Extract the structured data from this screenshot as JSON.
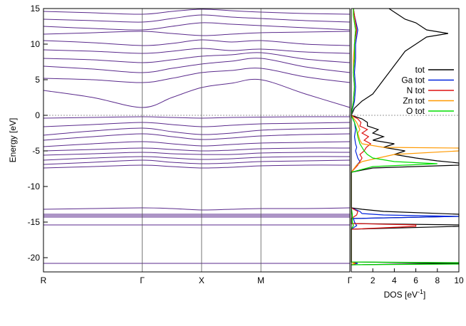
{
  "chart_data": [
    {
      "type": "line",
      "ylabel": "Energy [eV]",
      "ylim": [
        -22,
        15
      ],
      "yticks": [
        15,
        10,
        5,
        0,
        -5,
        -10,
        -15,
        -20
      ],
      "kpoints": [
        "R",
        "Γ",
        "X",
        "M",
        "Γ"
      ],
      "kpoint_positions": [
        0,
        1,
        1.6,
        2.2,
        3.1
      ],
      "band_color": "#5a2a8c",
      "fermi_level": 0,
      "grid": false,
      "bands": [
        {
          "name": "",
          "x": [
            0,
            0.5,
            1,
            1.3,
            1.6,
            1.9,
            2.2,
            2.65,
            3.1
          ],
          "y": [
            -20.8,
            -20.8,
            -20.8,
            -20.8,
            -20.8,
            -20.8,
            -20.8,
            -20.8,
            -20.8
          ]
        },
        {
          "name": "",
          "x": [
            0,
            0.5,
            1,
            1.3,
            1.6,
            1.9,
            2.2,
            2.65,
            3.1
          ],
          "y": [
            -15.4,
            -15.4,
            -15.4,
            -15.4,
            -15.4,
            -15.4,
            -15.4,
            -15.4,
            -15.4
          ]
        },
        {
          "name": "",
          "x": [
            0,
            0.5,
            1,
            1.3,
            1.6,
            1.9,
            2.2,
            2.65,
            3.1
          ],
          "y": [
            -14.3,
            -14.3,
            -14.3,
            -14.3,
            -14.3,
            -14.3,
            -14.3,
            -14.3,
            -14.3
          ]
        },
        {
          "name": "",
          "x": [
            0,
            0.5,
            1,
            1.3,
            1.6,
            1.9,
            2.2,
            2.65,
            3.1
          ],
          "y": [
            -14.1,
            -14.1,
            -14.1,
            -14.1,
            -14.1,
            -14.1,
            -14.1,
            -14.1,
            -14.1
          ]
        },
        {
          "name": "",
          "x": [
            0,
            0.5,
            1,
            1.3,
            1.6,
            1.9,
            2.2,
            2.65,
            3.1
          ],
          "y": [
            -13.9,
            -13.9,
            -13.9,
            -13.9,
            -13.9,
            -13.9,
            -13.9,
            -13.9,
            -13.9
          ]
        },
        {
          "name": "",
          "x": [
            0,
            0.5,
            1,
            1.3,
            1.6,
            1.9,
            2.2,
            2.65,
            3.1
          ],
          "y": [
            -13.2,
            -13.1,
            -13.0,
            -13.1,
            -13.3,
            -13.2,
            -13.1,
            -13.1,
            -13.0
          ]
        },
        {
          "name": "",
          "x": [
            0,
            0.5,
            1,
            1.3,
            1.6,
            1.9,
            2.2,
            2.65,
            3.1
          ],
          "y": [
            -7.4,
            -7.2,
            -7.0,
            -7.2,
            -7.4,
            -7.3,
            -7.1,
            -7.0,
            -7.0
          ]
        },
        {
          "name": "",
          "x": [
            0,
            0.5,
            1,
            1.3,
            1.6,
            1.9,
            2.2,
            2.65,
            3.1
          ],
          "y": [
            -6.9,
            -6.6,
            -6.3,
            -6.6,
            -6.8,
            -6.7,
            -6.5,
            -6.4,
            -6.3
          ]
        },
        {
          "name": "",
          "x": [
            0,
            0.5,
            1,
            1.3,
            1.6,
            1.9,
            2.2,
            2.65,
            3.1
          ],
          "y": [
            -6.3,
            -6.0,
            -5.8,
            -6.0,
            -6.2,
            -6.1,
            -5.9,
            -5.8,
            -5.8
          ]
        },
        {
          "name": "",
          "x": [
            0,
            0.5,
            1,
            1.3,
            1.6,
            1.9,
            2.2,
            2.65,
            3.1
          ],
          "y": [
            -5.6,
            -5.4,
            -5.2,
            -5.4,
            -5.5,
            -5.5,
            -5.3,
            -5.2,
            -5.2
          ]
        },
        {
          "name": "",
          "x": [
            0,
            0.5,
            1,
            1.3,
            1.6,
            1.9,
            2.2,
            2.65,
            3.1
          ],
          "y": [
            -5.0,
            -4.8,
            -4.6,
            -4.8,
            -5.0,
            -4.9,
            -4.7,
            -4.6,
            -4.6
          ]
        },
        {
          "name": "",
          "x": [
            0,
            0.5,
            1,
            1.3,
            1.6,
            1.9,
            2.2,
            2.65,
            3.1
          ],
          "y": [
            -4.4,
            -4.0,
            -3.7,
            -4.0,
            -4.3,
            -4.1,
            -3.9,
            -3.8,
            -3.7
          ]
        },
        {
          "name": "",
          "x": [
            0,
            0.5,
            1,
            1.3,
            1.6,
            1.9,
            2.2,
            2.65,
            3.1
          ],
          "y": [
            -3.5,
            -3.0,
            -2.6,
            -3.0,
            -3.4,
            -3.2,
            -2.9,
            -2.7,
            -2.6
          ]
        },
        {
          "name": "",
          "x": [
            0,
            0.5,
            1,
            1.3,
            1.6,
            1.9,
            2.2,
            2.65,
            3.1
          ],
          "y": [
            -2.8,
            -2.2,
            -1.8,
            -2.3,
            -2.7,
            -2.5,
            -2.1,
            -1.9,
            -1.8
          ]
        },
        {
          "name": "",
          "x": [
            0,
            0.5,
            1,
            1.3,
            1.6,
            1.9,
            2.2,
            2.65,
            3.1
          ],
          "y": [
            -1.6,
            -1.3,
            -1.0,
            -1.3,
            -1.6,
            -1.4,
            -1.2,
            -1.1,
            -1.0
          ]
        },
        {
          "name": "",
          "x": [
            0,
            0.5,
            1,
            1.3,
            1.6,
            1.9,
            2.2,
            2.65,
            3.1
          ],
          "y": [
            -0.4,
            -0.3,
            -0.2,
            -0.3,
            -0.4,
            -0.3,
            -0.25,
            -0.2,
            -0.2
          ]
        },
        {
          "name": "",
          "x": [
            0,
            0.5,
            1,
            1.3,
            1.6,
            1.9,
            2.2,
            2.65,
            3.1
          ],
          "y": [
            3.5,
            2.5,
            1.1,
            2.5,
            3.9,
            4.5,
            5.0,
            3.0,
            1.1
          ]
        },
        {
          "name": "",
          "x": [
            0,
            0.5,
            1,
            1.3,
            1.6,
            1.9,
            2.2,
            2.65,
            3.1
          ],
          "y": [
            5.2,
            5.0,
            4.6,
            5.2,
            6.0,
            6.3,
            6.6,
            5.4,
            4.6
          ]
        },
        {
          "name": "",
          "x": [
            0,
            0.5,
            1,
            1.3,
            1.6,
            1.9,
            2.2,
            2.65,
            3.1
          ],
          "y": [
            6.9,
            6.5,
            6.0,
            6.6,
            7.2,
            7.6,
            8.0,
            6.8,
            6.0
          ]
        },
        {
          "name": "",
          "x": [
            0,
            0.5,
            1,
            1.3,
            1.6,
            1.9,
            2.2,
            2.65,
            3.1
          ],
          "y": [
            8.0,
            7.8,
            7.4,
            7.8,
            8.3,
            8.5,
            8.8,
            7.9,
            7.4
          ]
        },
        {
          "name": "",
          "x": [
            0,
            0.5,
            1,
            1.3,
            1.6,
            1.9,
            2.2,
            2.65,
            3.1
          ],
          "y": [
            9.2,
            9.0,
            8.7,
            9.0,
            9.4,
            9.1,
            9.3,
            8.9,
            8.7
          ]
        },
        {
          "name": "",
          "x": [
            0,
            0.5,
            1,
            1.3,
            1.6,
            1.9,
            2.2,
            2.65,
            3.1
          ],
          "y": [
            10.5,
            10.2,
            9.8,
            10.1,
            10.6,
            10.3,
            10.5,
            10.0,
            9.8
          ]
        },
        {
          "name": "",
          "x": [
            0,
            0.5,
            1,
            1.3,
            1.6,
            1.9,
            2.2,
            2.65,
            3.1
          ],
          "y": [
            11.4,
            11.6,
            11.8,
            11.5,
            11.2,
            11.4,
            11.6,
            11.7,
            11.8
          ]
        },
        {
          "name": "",
          "x": [
            0,
            0.5,
            1,
            1.3,
            1.6,
            1.9,
            2.2,
            2.65,
            3.1
          ],
          "y": [
            12.5,
            12.2,
            12.0,
            12.5,
            13.0,
            12.8,
            12.6,
            12.3,
            12.0
          ]
        },
        {
          "name": "",
          "x": [
            0,
            0.5,
            1,
            1.3,
            1.6,
            1.9,
            2.2,
            2.65,
            3.1
          ],
          "y": [
            13.5,
            13.3,
            13.1,
            13.6,
            14.1,
            13.8,
            13.6,
            13.3,
            13.1
          ]
        },
        {
          "name": "",
          "x": [
            0,
            0.5,
            1,
            1.3,
            1.6,
            1.9,
            2.2,
            2.65,
            3.1
          ],
          "y": [
            14.6,
            14.4,
            14.2,
            14.6,
            14.9,
            14.7,
            14.5,
            14.3,
            14.2
          ]
        }
      ]
    },
    {
      "type": "line",
      "xlabel": "DOS [eV",
      "xlabel_sup": "-1",
      "xlabel_end": "]",
      "xlim": [
        0,
        10
      ],
      "xticks": [
        2,
        4,
        6,
        8,
        10
      ],
      "ylim": [
        -22,
        15
      ],
      "legend_position": "right",
      "series": [
        {
          "name": "tot",
          "color": "#000000",
          "energy": [
            -21,
            -20.8,
            -20.6,
            -16,
            -15.6,
            -15.4,
            -15.2,
            -14.5,
            -14.2,
            -14.0,
            -13.9,
            -13.5,
            -13.2,
            -13.0,
            -8,
            -7.4,
            -7.0,
            -6.7,
            -6.4,
            -6.0,
            -5.5,
            -5.0,
            -4.5,
            -4.0,
            -3.5,
            -3.0,
            -2.5,
            -2.0,
            -1.5,
            -1.0,
            -0.5,
            0,
            1,
            2,
            3,
            4,
            5,
            6,
            7,
            8,
            9,
            10,
            10.5,
            11,
            11.5,
            12,
            12.5,
            13,
            13.5,
            14,
            14.5,
            15
          ],
          "dos": [
            0,
            10,
            0,
            0,
            10,
            10,
            0,
            0,
            10,
            10,
            10,
            3,
            1,
            0,
            0,
            2,
            10,
            10,
            8,
            6,
            4,
            5,
            3,
            4,
            2,
            3,
            2,
            2.5,
            1.5,
            1.5,
            1,
            0,
            0.3,
            1,
            2,
            2.5,
            3,
            3.5,
            4,
            4.5,
            5,
            6,
            6.5,
            7,
            9,
            7,
            6.5,
            6,
            5,
            4.5,
            4,
            3.5
          ]
        },
        {
          "name": "Ga tot",
          "color": "#0022dd",
          "energy": [
            -21,
            -20.8,
            -20.6,
            -16,
            -15.5,
            -15,
            -14.5,
            -14.2,
            -14.0,
            -13.8,
            -13.5,
            -13.0,
            -8,
            -7.0,
            -6.5,
            -6.0,
            -5.5,
            -5.0,
            -4.5,
            -4.0,
            -3.0,
            -2.0,
            -1.0,
            0,
            2,
            4,
            6,
            8,
            10,
            12,
            14,
            15
          ],
          "dos": [
            0,
            0.6,
            0,
            0,
            0.5,
            0.3,
            0.2,
            10,
            3,
            1,
            0.8,
            0,
            0,
            0.5,
            0.8,
            0.6,
            0.5,
            0.4,
            0.5,
            0.4,
            0.3,
            0.4,
            0.3,
            0,
            0.3,
            0.4,
            0.3,
            0.4,
            0.4,
            0.6,
            0.3,
            0.2
          ]
        },
        {
          "name": "N tot",
          "color": "#dd1111",
          "energy": [
            -21,
            -20.8,
            -20.6,
            -16,
            -15.6,
            -15.4,
            -15.2,
            -14.5,
            -14.0,
            -13.5,
            -13.0,
            -8,
            -7.0,
            -6.0,
            -5.5,
            -5.0,
            -4.5,
            -4.0,
            -3.5,
            -3.0,
            -2.5,
            -2.0,
            -1.5,
            -1.0,
            -0.5,
            0,
            2,
            4,
            6,
            8,
            10,
            12,
            14,
            15
          ],
          "dos": [
            0,
            0.4,
            0,
            0,
            6,
            6,
            0,
            0,
            0.5,
            0.6,
            0,
            0,
            0.6,
            1.0,
            0.8,
            1.2,
            1.4,
            1.8,
            1.2,
            1.6,
            1.0,
            1.5,
            0.8,
            0.9,
            0.6,
            0,
            0.2,
            0.3,
            0.2,
            0.3,
            0.3,
            0.5,
            0.3,
            0.2
          ]
        },
        {
          "name": "Zn tot",
          "color": "#ff9900",
          "energy": [
            -21,
            -20.8,
            -20.6,
            -16,
            -15.5,
            -15,
            -14,
            -13,
            -8,
            -7.0,
            -6.5,
            -6.0,
            -5.5,
            -5.0,
            -4.8,
            -4.6,
            -4.5,
            -4.0,
            -3.5,
            -3.0,
            -2.5,
            -2.0,
            -1.0,
            0,
            2,
            4,
            6,
            8,
            10,
            12,
            14,
            15
          ],
          "dos": [
            0,
            0.3,
            0,
            0,
            0.2,
            0.1,
            0.1,
            0,
            0,
            0.5,
            1.0,
            2.5,
            4.0,
            10,
            10,
            10,
            3.0,
            1.0,
            0.8,
            0.7,
            0.6,
            0.8,
            0.5,
            0,
            0.2,
            0.3,
            0.2,
            0.2,
            0.3,
            0.4,
            0.2,
            0.2
          ]
        },
        {
          "name": "O tot",
          "color": "#00dd00",
          "energy": [
            -21,
            -20.9,
            -20.8,
            -20.7,
            -20.6,
            -16,
            -15.5,
            -15,
            -14,
            -13,
            -8,
            -7.2,
            -7.0,
            -6.8,
            -6.5,
            -6.0,
            -5.5,
            -5.0,
            -4.5,
            -4.0,
            -3.0,
            -2.0,
            -1.0,
            0,
            2,
            4,
            6,
            8,
            10,
            12,
            14,
            15
          ],
          "dos": [
            0,
            10,
            10,
            10,
            0,
            0,
            0.2,
            0.1,
            0.1,
            0,
            0,
            2.0,
            5.0,
            8.0,
            4.0,
            2.0,
            1.5,
            1.2,
            1.0,
            0.8,
            0.6,
            0.5,
            0.3,
            0,
            0.2,
            0.3,
            0.2,
            0.3,
            0.3,
            0.4,
            0.2,
            0.2
          ]
        }
      ]
    }
  ]
}
